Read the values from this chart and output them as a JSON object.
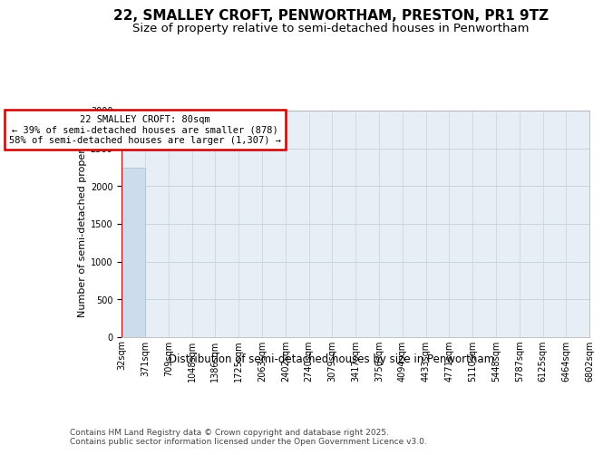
{
  "title": "22, SMALLEY CROFT, PENWORTHAM, PRESTON, PR1 9TZ",
  "subtitle": "Size of property relative to semi-detached houses in Penwortham",
  "xlabel": "Distribution of semi-detached houses by size in Penwortham",
  "ylabel": "Number of semi-detached properties",
  "bin_labels": [
    "32sqm",
    "371sqm",
    "709sqm",
    "1048sqm",
    "1386sqm",
    "1725sqm",
    "2063sqm",
    "2402sqm",
    "2740sqm",
    "3079sqm",
    "3417sqm",
    "3756sqm",
    "4094sqm",
    "4433sqm",
    "4771sqm",
    "5110sqm",
    "5448sqm",
    "5787sqm",
    "6125sqm",
    "6464sqm",
    "6802sqm"
  ],
  "bar_heights": [
    2250,
    0,
    0,
    0,
    0,
    0,
    0,
    0,
    0,
    0,
    0,
    0,
    0,
    0,
    0,
    0,
    0,
    0,
    0,
    0
  ],
  "bar_color": "#ccdcec",
  "bar_edge_color": "#aabccc",
  "ylim": [
    0,
    3000
  ],
  "yticks": [
    0,
    500,
    1000,
    1500,
    2000,
    2500,
    3000
  ],
  "annotation_text": "22 SMALLEY CROFT: 80sqm\n← 39% of semi-detached houses are smaller (878)\n58% of semi-detached houses are larger (1,307) →",
  "annotation_box_color": "#ffffff",
  "annotation_box_edge_color": "#cc0000",
  "footer_text": "Contains HM Land Registry data © Crown copyright and database right 2025.\nContains public sector information licensed under the Open Government Licence v3.0.",
  "background_color": "#ffffff",
  "plot_bg_color": "#e8eef5",
  "grid_color": "#c8d4de",
  "title_fontsize": 11,
  "subtitle_fontsize": 9.5,
  "ylabel_fontsize": 8,
  "xlabel_fontsize": 8.5,
  "tick_fontsize": 7,
  "footer_fontsize": 6.5,
  "vline_color": "#cc0000"
}
